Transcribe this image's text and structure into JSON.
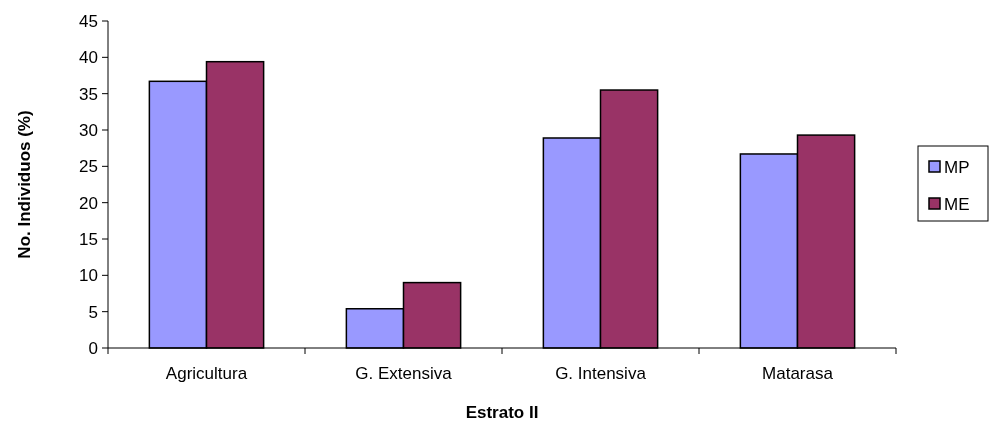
{
  "chart_data": {
    "type": "bar",
    "xlabel": "Estrato II",
    "ylabel": "No. Individuos (%)",
    "categories": [
      "Agricultura",
      "G. Extensiva",
      "G. Intensiva",
      "Matarasa"
    ],
    "series": [
      {
        "name": "MP",
        "color": "#9999ff",
        "values": [
          36.7,
          5.4,
          28.9,
          26.7
        ]
      },
      {
        "name": "ME",
        "color": "#993366",
        "values": [
          39.4,
          9.0,
          35.5,
          29.3
        ]
      }
    ],
    "ylim": [
      0,
      45
    ],
    "yticks": [
      0,
      5,
      10,
      15,
      20,
      25,
      30,
      35,
      40,
      45
    ],
    "grid": false,
    "legend": "right"
  }
}
